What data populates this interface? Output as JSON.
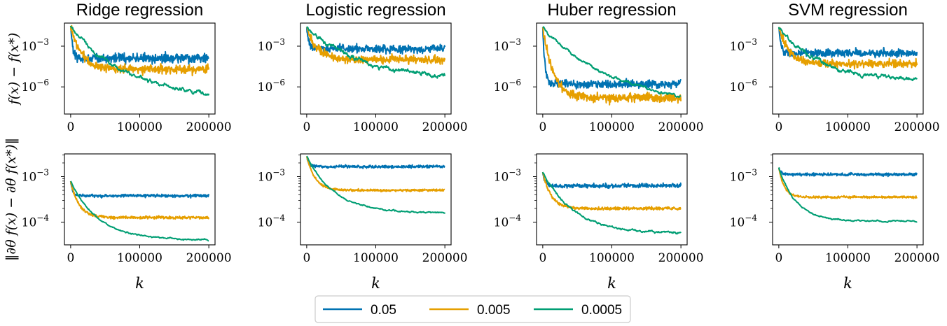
{
  "chart_data": {
    "type": "line",
    "legend": {
      "placement": "bottom-center",
      "entries": [
        "0.05",
        "0.005",
        "0.0005"
      ]
    },
    "colors": [
      "#0072b2",
      "#e69f00",
      "#009e73"
    ],
    "x_ticks": [
      "0",
      "100000",
      "200000"
    ],
    "x_range": [
      0,
      200000
    ],
    "x_label": "k",
    "row_ylabels": [
      "f(x) − f(x*)",
      "‖∂θ f(x) − ∂θ f(x*)‖"
    ],
    "rows": [
      {
        "ylim_exp": [
          -8.0,
          -1.3
        ],
        "y_ticks": [
          {
            "exp": -3,
            "label": "10",
            "sup": "−3"
          },
          {
            "exp": -6,
            "label": "10",
            "sup": "−6"
          }
        ]
      },
      {
        "ylim_exp": [
          -4.5,
          -2.5
        ],
        "y_ticks": [
          {
            "exp": -3,
            "label": "10",
            "sup": "−3"
          },
          {
            "exp": -4,
            "label": "10",
            "sup": "−4"
          }
        ]
      }
    ],
    "panels": [
      {
        "title": "Ridge regression",
        "row": 0,
        "col": 0,
        "series": [
          {
            "name": "0.05",
            "start": -1.5,
            "level": -3.9,
            "decay_k": 3000,
            "noise": 0.55
          },
          {
            "name": "0.005",
            "start": -1.5,
            "level": -4.7,
            "decay_k": 15000,
            "noise": 0.5
          },
          {
            "name": "0.0005",
            "start": -1.5,
            "level": -6.9,
            "decay_k": 80000,
            "noise": 0.25
          }
        ]
      },
      {
        "title": "Logistic regression",
        "row": 0,
        "col": 1,
        "series": [
          {
            "name": "0.05",
            "start": -1.6,
            "level": -3.2,
            "decay_k": 3000,
            "noise": 0.45
          },
          {
            "name": "0.005",
            "start": -1.6,
            "level": -4.0,
            "decay_k": 15000,
            "noise": 0.45
          },
          {
            "name": "0.0005",
            "start": -1.6,
            "level": -5.5,
            "decay_k": 80000,
            "noise": 0.3
          }
        ]
      },
      {
        "title": "Huber regression",
        "row": 0,
        "col": 2,
        "series": [
          {
            "name": "0.05",
            "start": -1.6,
            "level": -5.8,
            "decay_k": 3000,
            "noise": 0.45
          },
          {
            "name": "0.005",
            "start": -1.6,
            "level": -6.8,
            "decay_k": 15000,
            "noise": 0.5
          },
          {
            "name": "0.0005",
            "start": -1.6,
            "level": -7.7,
            "decay_k": 110000,
            "noise": 0.2
          }
        ]
      },
      {
        "title": "SVM regression",
        "row": 0,
        "col": 3,
        "series": [
          {
            "name": "0.05",
            "start": -1.6,
            "level": -3.5,
            "decay_k": 3000,
            "noise": 0.45
          },
          {
            "name": "0.005",
            "start": -1.6,
            "level": -4.3,
            "decay_k": 15000,
            "noise": 0.45
          },
          {
            "name": "0.0005",
            "start": -1.6,
            "level": -5.6,
            "decay_k": 60000,
            "noise": 0.3
          }
        ]
      },
      {
        "title": "",
        "row": 1,
        "col": 0,
        "series": [
          {
            "name": "0.05",
            "start": -3.1,
            "level": -3.42,
            "decay_k": 3000,
            "noise": 0.05
          },
          {
            "name": "0.005",
            "start": -3.1,
            "level": -3.9,
            "decay_k": 12000,
            "noise": 0.05
          },
          {
            "name": "0.0005",
            "start": -3.1,
            "level": -4.4,
            "decay_k": 40000,
            "noise": 0.03
          }
        ]
      },
      {
        "title": "",
        "row": 1,
        "col": 1,
        "series": [
          {
            "name": "0.05",
            "start": -2.55,
            "level": -2.78,
            "decay_k": 3000,
            "noise": 0.05
          },
          {
            "name": "0.005",
            "start": -2.55,
            "level": -3.3,
            "decay_k": 12000,
            "noise": 0.04
          },
          {
            "name": "0.0005",
            "start": -2.55,
            "level": -3.8,
            "decay_k": 40000,
            "noise": 0.03
          }
        ]
      },
      {
        "title": "",
        "row": 1,
        "col": 2,
        "series": [
          {
            "name": "0.05",
            "start": -2.9,
            "level": -3.2,
            "decay_k": 3000,
            "noise": 0.07
          },
          {
            "name": "0.005",
            "start": -2.9,
            "level": -3.7,
            "decay_k": 12000,
            "noise": 0.05
          },
          {
            "name": "0.0005",
            "start": -2.9,
            "level": -4.25,
            "decay_k": 45000,
            "noise": 0.04
          }
        ]
      },
      {
        "title": "",
        "row": 1,
        "col": 3,
        "series": [
          {
            "name": "0.05",
            "start": -2.8,
            "level": -2.95,
            "decay_k": 3000,
            "noise": 0.05
          },
          {
            "name": "0.005",
            "start": -2.8,
            "level": -3.45,
            "decay_k": 8000,
            "noise": 0.04
          },
          {
            "name": "0.0005",
            "start": -2.8,
            "level": -3.98,
            "decay_k": 25000,
            "noise": 0.03
          }
        ]
      }
    ]
  }
}
